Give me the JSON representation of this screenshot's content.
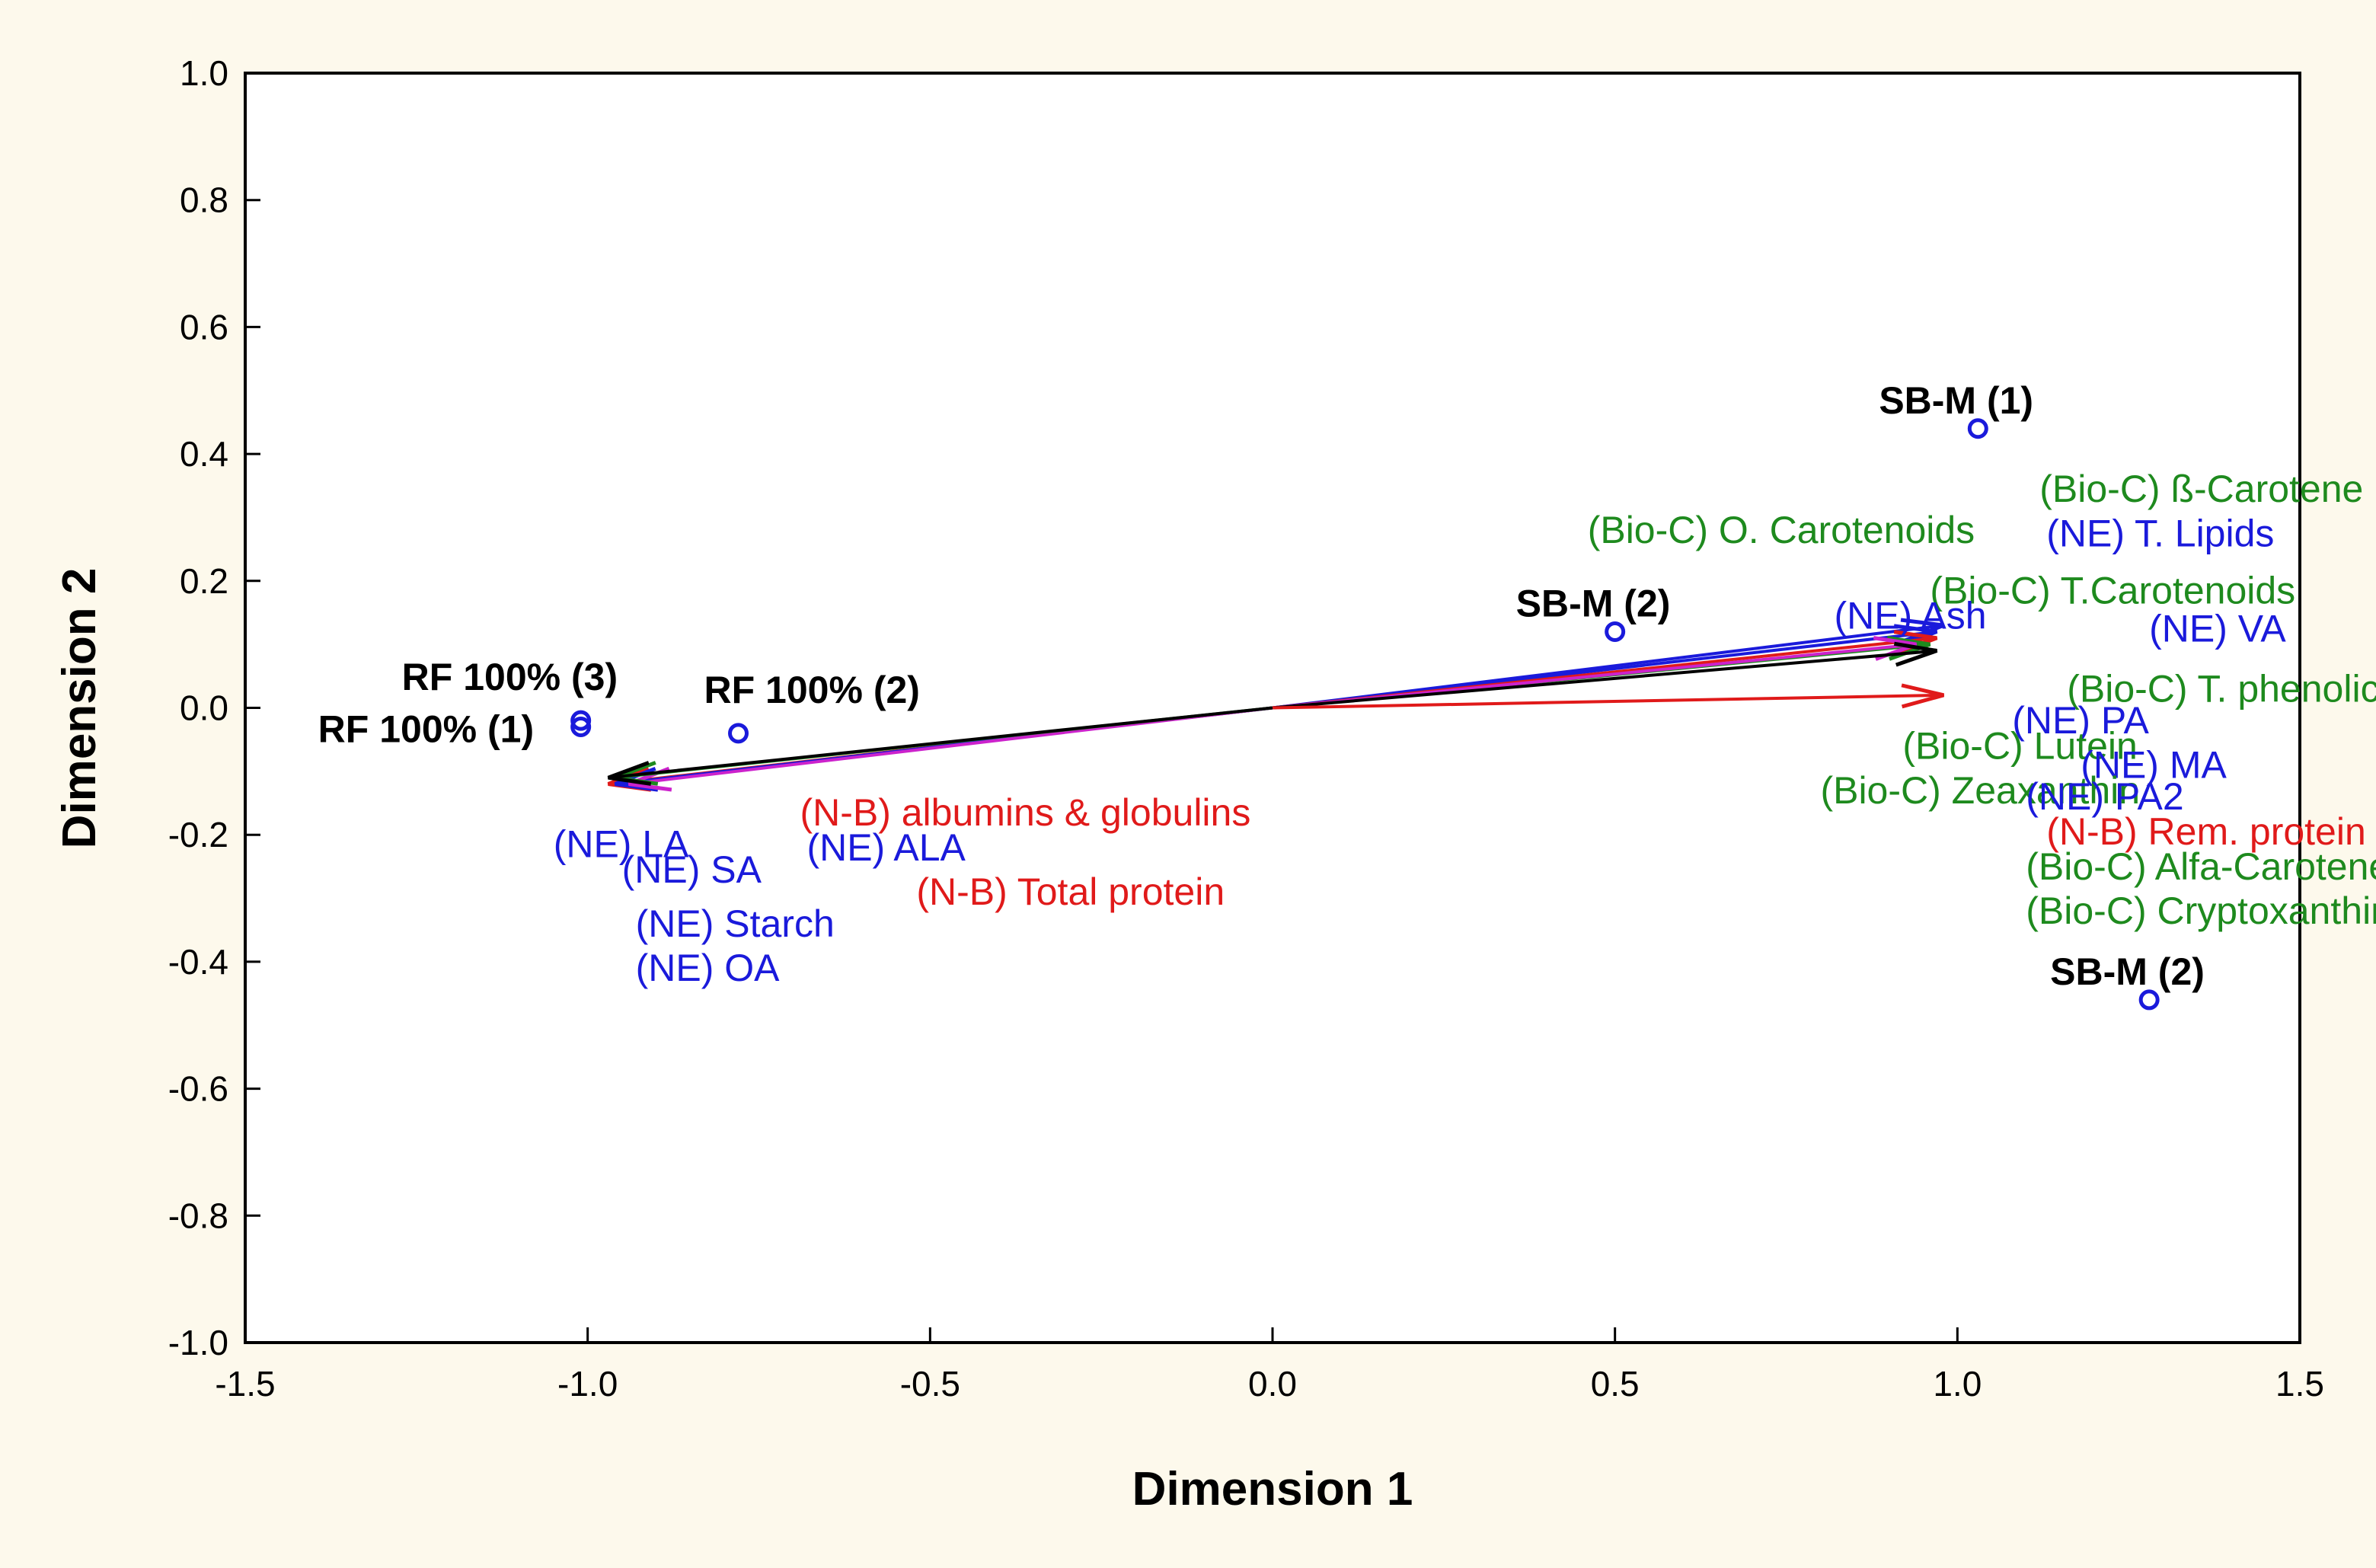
{
  "chart_data": {
    "type": "scatter",
    "xlabel": "Dimension 1",
    "ylabel": "Dimension 2",
    "xlim": [
      -1.5,
      1.5
    ],
    "ylim": [
      -1.0,
      1.0
    ],
    "xticks": [
      "-1.5",
      "-1.0",
      "-0.5",
      "0.0",
      "0.5",
      "1.0",
      "1.5"
    ],
    "yticks": [
      "1.0",
      "0.8",
      "0.6",
      "0.4",
      "0.2",
      "0.0",
      "-0.2",
      "-0.4",
      "-0.6",
      "-0.8",
      "-1.0"
    ],
    "grid": false,
    "colors": {
      "background": "#fdf9ec",
      "plot": "#ffffff",
      "NE": "#1a1adb",
      "Bio-C": "#1e8a1e",
      "N-B": "#e01a1a",
      "points": "#000000",
      "marker": "#1a1adb"
    },
    "points": [
      {
        "label": "SB-M (1)",
        "x": 1.03,
        "y": 0.44
      },
      {
        "label": "SB-M (2)",
        "x": 0.5,
        "y": 0.12
      },
      {
        "label": "SB-M (2)",
        "x": 1.28,
        "y": -0.46
      },
      {
        "label": "RF 100% (3)",
        "x": -1.01,
        "y": -0.02
      },
      {
        "label": "RF 100% (1)",
        "x": -1.01,
        "y": -0.03
      },
      {
        "label": "RF 100% (2)",
        "x": -0.78,
        "y": -0.04
      }
    ],
    "arrows": [
      {
        "x": 0.98,
        "y": 0.13,
        "color": "#1a1adb"
      },
      {
        "x": 0.97,
        "y": 0.12,
        "color": "#1a1adb"
      },
      {
        "x": 0.97,
        "y": 0.11,
        "color": "#e01a1a"
      },
      {
        "x": 0.96,
        "y": 0.1,
        "color": "#1e8a1e"
      },
      {
        "x": 0.94,
        "y": 0.1,
        "color": "#cc22cc"
      },
      {
        "x": 0.97,
        "y": 0.09,
        "color": "#000000"
      },
      {
        "x": 0.98,
        "y": 0.02,
        "color": "#e01a1a"
      },
      {
        "x": -0.97,
        "y": -0.12,
        "color": "#e01a1a"
      },
      {
        "x": -0.96,
        "y": -0.12,
        "color": "#1a1adb"
      },
      {
        "x": -0.94,
        "y": -0.12,
        "color": "#cc22cc"
      },
      {
        "x": -0.96,
        "y": -0.11,
        "color": "#1e8a1e"
      },
      {
        "x": -0.97,
        "y": -0.11,
        "color": "#000000"
      }
    ],
    "variables": [
      {
        "text": "(Bio-C) ß-Carotene",
        "group": "Bio-C",
        "x": 1.12,
        "y": 0.345
      },
      {
        "text": "(Bio-C) O. Carotenoids",
        "group": "Bio-C",
        "x": 0.46,
        "y": 0.28
      },
      {
        "text": "(NE) T. Lipids",
        "group": "NE",
        "x": 1.13,
        "y": 0.275
      },
      {
        "text": "(Bio-C) T.Carotenoids",
        "group": "Bio-C",
        "x": 0.96,
        "y": 0.185
      },
      {
        "text": "(NE) Ash",
        "group": "NE",
        "x": 0.82,
        "y": 0.145
      },
      {
        "text": "(NE) VA",
        "group": "NE",
        "x": 1.28,
        "y": 0.125
      },
      {
        "text": "(Bio-C) T. phenolic comp.",
        "group": "Bio-C",
        "x": 1.16,
        "y": 0.03
      },
      {
        "text": "(NE) PA",
        "group": "NE",
        "x": 1.08,
        "y": -0.02
      },
      {
        "text": "(Bio-C) Lutein",
        "group": "Bio-C",
        "x": 0.92,
        "y": -0.06
      },
      {
        "text": "(NE) MA",
        "group": "NE",
        "x": 1.18,
        "y": -0.09
      },
      {
        "text": "(Bio-C) Zeaxanthin",
        "group": "Bio-C",
        "x": 0.8,
        "y": -0.13
      },
      {
        "text": "(NE) PA2",
        "group": "NE",
        "x": 1.1,
        "y": -0.14
      },
      {
        "text": "(N-B) Rem. protein fractions",
        "group": "N-B",
        "x": 1.13,
        "y": -0.195
      },
      {
        "text": "(Bio-C) Alfa-Carotene",
        "group": "Bio-C",
        "x": 1.1,
        "y": -0.25
      },
      {
        "text": "(Bio-C) Cryptoxanthin",
        "group": "Bio-C",
        "x": 1.1,
        "y": -0.32
      },
      {
        "text": "(N-B) albumins & globulins",
        "group": "N-B",
        "x": -0.69,
        "y": -0.165
      },
      {
        "text": "(NE) LA",
        "group": "NE",
        "x": -1.05,
        "y": -0.215
      },
      {
        "text": "(NE) ALA",
        "group": "NE",
        "x": -0.68,
        "y": -0.22
      },
      {
        "text": "(NE) SA",
        "group": "NE",
        "x": -0.95,
        "y": -0.255
      },
      {
        "text": "(N-B) Total protein",
        "group": "N-B",
        "x": -0.52,
        "y": -0.29
      },
      {
        "text": "(NE) Starch",
        "group": "NE",
        "x": -0.93,
        "y": -0.34
      },
      {
        "text": "(NE) OA",
        "group": "NE",
        "x": -0.93,
        "y": -0.41
      }
    ]
  }
}
